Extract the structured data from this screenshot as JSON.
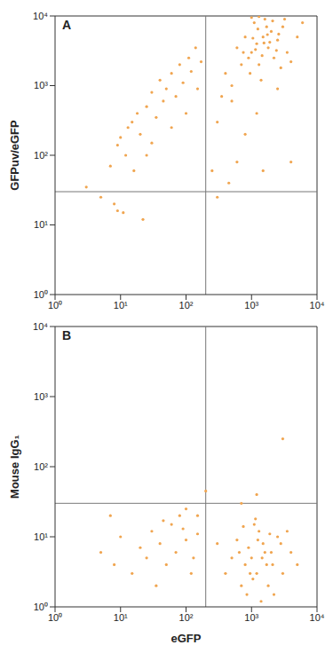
{
  "chart_data": [
    {
      "type": "scatter",
      "title": "A",
      "y_label": "GFPuv/eGFP",
      "color": "#f0a550",
      "log": true,
      "xlim": [
        1,
        10000
      ],
      "ylim": [
        1,
        10000
      ],
      "xticks": [
        {
          "value": 1,
          "label": "10⁰"
        },
        {
          "value": 10,
          "label": "10¹"
        },
        {
          "value": 100,
          "label": "10²"
        },
        {
          "value": 1000,
          "label": "10³"
        },
        {
          "value": 10000,
          "label": "10⁴"
        }
      ],
      "yticks": [
        {
          "value": 1,
          "label": "10⁰"
        },
        {
          "value": 10,
          "label": "10¹"
        },
        {
          "value": 100,
          "label": "10²"
        },
        {
          "value": 1000,
          "label": "10³"
        },
        {
          "value": 10000,
          "label": "10⁴"
        }
      ],
      "gate_x": 200,
      "gate_y": 30,
      "x": [
        3,
        5,
        8,
        9,
        11,
        22,
        7,
        9,
        10,
        12,
        13,
        15,
        18,
        20,
        25,
        30,
        35,
        40,
        45,
        50,
        60,
        70,
        80,
        90,
        100,
        110,
        120,
        140,
        150,
        170,
        30,
        60,
        16,
        25,
        300,
        450,
        250,
        600,
        1500,
        4000,
        800,
        300,
        500,
        1200,
        2500,
        1000,
        1200,
        1500,
        1800,
        2000,
        900,
        700,
        1300,
        2500,
        3000,
        1100,
        1600,
        2200,
        800,
        600,
        400,
        1400,
        3500,
        5000,
        2800,
        1700,
        950,
        1250,
        2100,
        500,
        350,
        1000,
        1900,
        2600,
        1150,
        1450,
        750,
        3200,
        4000,
        6000,
        1300,
        2400,
        1050,
        1550,
        1750
      ],
      "values": [
        35,
        25,
        20,
        16,
        15,
        12,
        70,
        140,
        180,
        100,
        250,
        300,
        400,
        200,
        500,
        800,
        350,
        1200,
        600,
        900,
        1500,
        700,
        2000,
        1100,
        400,
        2500,
        1600,
        3500,
        900,
        2200,
        150,
        250,
        60,
        100,
        25,
        40,
        60,
        80,
        60,
        80,
        200,
        300,
        600,
        400,
        900,
        3000,
        4000,
        5000,
        3500,
        6000,
        2500,
        2000,
        2000,
        4500,
        7000,
        8000,
        9000,
        2500,
        5000,
        3500,
        1500,
        1200,
        3000,
        5000,
        1800,
        7000,
        1500,
        6500,
        8500,
        1000,
        700,
        9500,
        4200,
        5500,
        3300,
        2700,
        3000,
        9000,
        2200,
        8000,
        9800,
        3200,
        4800,
        4100,
        5400
      ]
    },
    {
      "type": "scatter",
      "title": "B",
      "x_label": "eGFP",
      "y_label": "Mouse IgG₁",
      "color": "#f0a550",
      "log": true,
      "xlim": [
        1,
        10000
      ],
      "ylim": [
        1,
        10000
      ],
      "xticks": [
        {
          "value": 1,
          "label": "10⁰"
        },
        {
          "value": 10,
          "label": "10¹"
        },
        {
          "value": 100,
          "label": "10²"
        },
        {
          "value": 1000,
          "label": "10³"
        },
        {
          "value": 10000,
          "label": "10⁴"
        }
      ],
      "yticks": [
        {
          "value": 1,
          "label": "10⁰"
        },
        {
          "value": 10,
          "label": "10¹"
        },
        {
          "value": 100,
          "label": "10²"
        },
        {
          "value": 1000,
          "label": "10³"
        },
        {
          "value": 10000,
          "label": "10⁴"
        }
      ],
      "gate_x": 200,
      "gate_y": 30,
      "x": [
        100,
        200,
        700,
        1200,
        3000,
        150,
        5,
        8,
        10,
        15,
        20,
        25,
        30,
        40,
        50,
        60,
        70,
        80,
        100,
        120,
        150,
        7,
        35,
        90,
        130,
        45,
        1000,
        1200,
        1500,
        800,
        2000,
        700,
        2500,
        3000,
        1300,
        900,
        1800,
        600,
        500,
        1100,
        1700,
        2200,
        4000,
        1400,
        950,
        1600,
        2800,
        400,
        3500,
        1250,
        850,
        2100,
        1050,
        1900,
        650,
        300,
        5000,
        1150,
        1450,
        750
      ],
      "values": [
        25,
        45,
        30,
        40,
        250,
        20,
        6,
        4,
        10,
        3,
        7,
        5,
        12,
        8,
        4,
        15,
        6,
        20,
        9,
        3,
        11,
        20,
        2,
        13,
        5,
        17,
        5,
        3,
        8,
        4,
        6,
        2,
        10,
        3,
        12,
        7,
        2,
        9,
        5,
        15,
        4,
        1.5,
        6,
        1.2,
        3,
        6,
        8,
        3,
        12,
        9,
        1.5,
        4,
        2.5,
        11,
        6,
        8,
        4,
        18,
        5,
        14
      ]
    }
  ]
}
